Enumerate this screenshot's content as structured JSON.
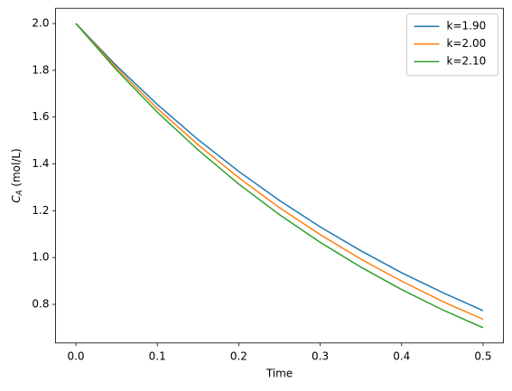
{
  "chart_data": {
    "type": "line",
    "xlabel": "Time",
    "ylabel": "CA (mol/L)",
    "x": [
      0,
      0.05,
      0.1,
      0.15,
      0.2,
      0.25,
      0.3,
      0.35,
      0.4,
      0.45,
      0.5
    ],
    "series": [
      {
        "name": "k=1.90",
        "color": "#1f77b4",
        "values": [
          2.0,
          1.819,
          1.654,
          1.504,
          1.368,
          1.244,
          1.131,
          1.029,
          0.935,
          0.851,
          0.773
        ]
      },
      {
        "name": "k=2.00",
        "color": "#ff7f0e",
        "values": [
          2.0,
          1.81,
          1.637,
          1.482,
          1.341,
          1.213,
          1.098,
          0.993,
          0.899,
          0.813,
          0.736
        ]
      },
      {
        "name": "k=2.10",
        "color": "#2ca02c",
        "values": [
          2.0,
          1.801,
          1.621,
          1.46,
          1.314,
          1.183,
          1.065,
          0.959,
          0.863,
          0.777,
          0.7
        ]
      }
    ],
    "xlim": [
      -0.025,
      0.525
    ],
    "xticks": [
      {
        "value": 0,
        "label": "0.0"
      },
      0.1,
      0.2,
      0.3,
      0.4,
      0.5
    ],
    "ylim": [
      0.635,
      2.065
    ],
    "yticks": [
      0.8,
      {
        "value": 1,
        "label": "1.0"
      },
      1.2,
      1.4,
      1.6,
      1.8,
      {
        "value": 2,
        "label": "2.0"
      }
    ],
    "legend": "upper right"
  }
}
